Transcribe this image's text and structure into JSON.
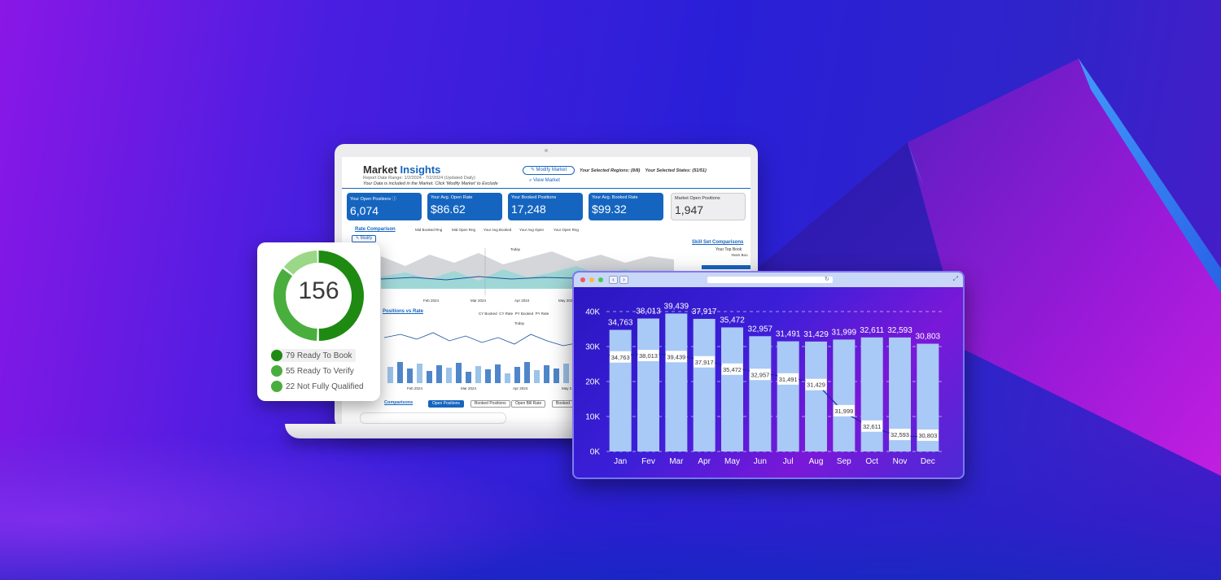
{
  "market_insights": {
    "title_a": "Market",
    "title_b": "Insights",
    "report_range": "Report Date Range: 1/2/2024 - 7/2/2024 (Updated Daily)",
    "note": "Your Data is included in the Market. Click 'Modify Market' to Exclude",
    "modify_market": "✎ Modify Market",
    "view_market": "View Market",
    "regions": "Your Selected Regions: (8/8)",
    "states": "Your Selected States: (51/51)",
    "kpis": [
      {
        "label": "Your Open Positions ⓘ",
        "value": "6,074"
      },
      {
        "label": "Your Avg. Open Rate",
        "value": "$86.62"
      },
      {
        "label": "Your Booked Positions",
        "value": "17,248"
      },
      {
        "label": "Your Avg. Booked Rate",
        "value": "$99.32"
      },
      {
        "label": "Market Open Positions",
        "value": "1,947"
      }
    ],
    "rate_comparison": "Rate Comparison",
    "modify": "✎ Modify",
    "rate_legend": [
      "Mid Booked Rng",
      "Mid Open Rng",
      "Your Avg Booked",
      "Your Avg Open",
      "Your Open Rng"
    ],
    "today": "Today",
    "months_a": [
      "Feb 2024",
      "Mar 2024",
      "Apr 2024",
      "May 2024"
    ],
    "positions_vs_rate": "Positions vs Rate",
    "pos_legend": [
      "CY Booked",
      "CY Rate",
      "PY Booked",
      "PY Rate"
    ],
    "months_b": [
      "Feb 2024",
      "Mar 2024",
      "Apr 2024",
      "May 2"
    ],
    "comparisons": "Comparisons",
    "tabs": [
      "Open Positions",
      "Booked Positions",
      "Open Bill Rate",
      "Booked"
    ],
    "skill_set": "Skill Set Comparisons",
    "your_top": "Your Top Book",
    "years_book": "Years Boo"
  },
  "donut": {
    "total": "156",
    "items": [
      {
        "count": 79,
        "label": "79 Ready To Book",
        "color": "#1e8a12"
      },
      {
        "count": 55,
        "label": "55 Ready To Verify",
        "color": "#49ae3e"
      },
      {
        "count": 22,
        "label": "22 Not Fully Qualified",
        "color": "#9ad786"
      }
    ]
  },
  "browser": {
    "reload": "↻",
    "expand": "⤢",
    "nav_back": "‹",
    "nav_fwd": "›"
  },
  "chart_data": {
    "type": "bar",
    "categories": [
      "Jan",
      "Fev",
      "Mar",
      "Apr",
      "May",
      "Jun",
      "Jul",
      "Aug",
      "Sep",
      "Oct",
      "Nov",
      "Dec"
    ],
    "series": [
      {
        "values": [
          34763,
          38013,
          39439,
          37917,
          35472,
          32957,
          31491,
          31429,
          31999,
          32611,
          32593,
          30803
        ]
      },
      {
        "type": "line",
        "values": [
          27500,
          27900,
          27600,
          26100,
          24000,
          22500,
          21200,
          19600,
          11200,
          6800,
          4400,
          4200
        ]
      }
    ],
    "labels": [
      "34,763",
      "38,013",
      "39,439",
      "37,917",
      "35,472",
      "32,957",
      "31,491",
      "31,429",
      "31,999",
      "32,611",
      "32,593",
      "30,803"
    ],
    "yticks": [
      "0K",
      "10K",
      "20K",
      "30K",
      "40K"
    ],
    "ylim": [
      0,
      40000
    ],
    "grid": true
  }
}
